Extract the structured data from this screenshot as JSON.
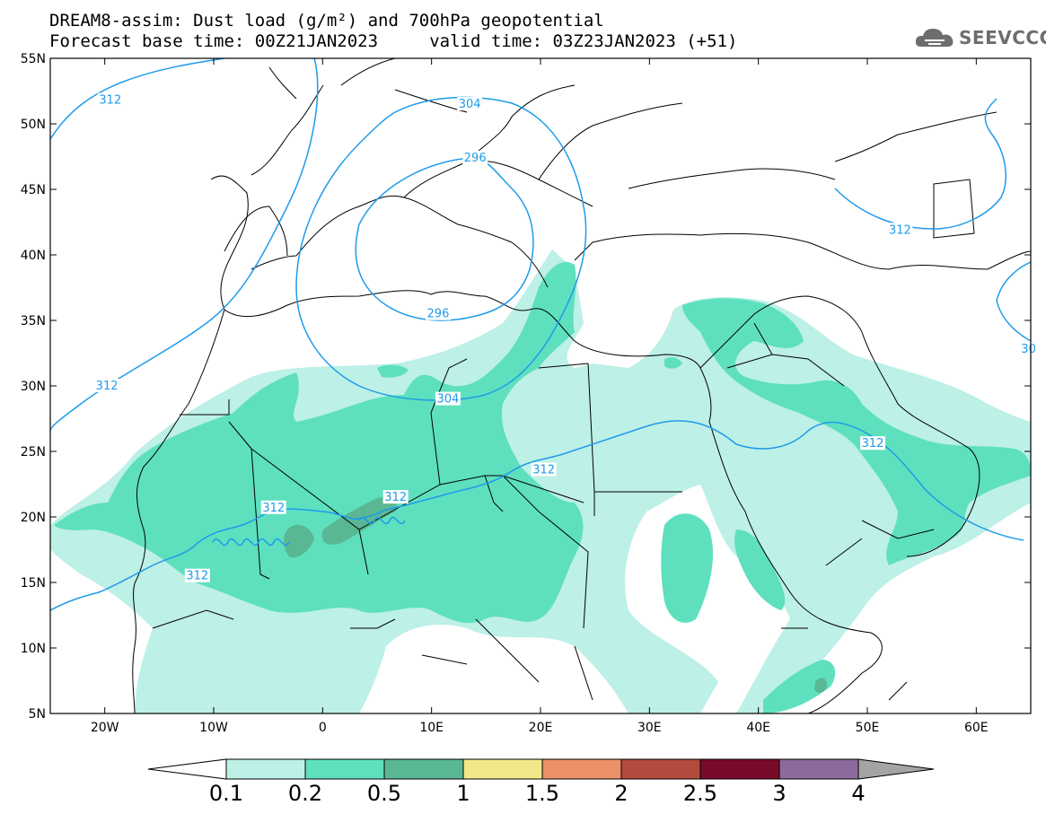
{
  "title": {
    "line1": "DREAM8-assim: Dust load (g/m²) and 700hPa geopotential",
    "line2": "Forecast base time: 00Z21JAN2023     valid time: 03Z23JAN2023 (+51)"
  },
  "logo": {
    "icon": "cloud-icon",
    "text": "SEEVCCC"
  },
  "axes": {
    "lat_ticks": [
      "55N",
      "50N",
      "45N",
      "40N",
      "35N",
      "30N",
      "25N",
      "20N",
      "15N",
      "10N",
      "5N"
    ],
    "lon_ticks": [
      "20W",
      "10W",
      "0",
      "10E",
      "20E",
      "30E",
      "40E",
      "50E",
      "60E"
    ],
    "lat_range": [
      5,
      55
    ],
    "lon_range": [
      -25,
      65
    ]
  },
  "contour_labels": [
    {
      "text": "312",
      "lon": -19.5,
      "lat": 51.8
    },
    {
      "text": "304",
      "lon": 13.5,
      "lat": 51.5
    },
    {
      "text": "296",
      "lon": 14.0,
      "lat": 47.4
    },
    {
      "text": "296",
      "lon": 10.6,
      "lat": 35.5
    },
    {
      "text": "304",
      "lon": 11.5,
      "lat": 29.0
    },
    {
      "text": "312",
      "lon": -19.8,
      "lat": 30.0
    },
    {
      "text": "312",
      "lon": -4.5,
      "lat": 20.7
    },
    {
      "text": "312",
      "lon": 6.7,
      "lat": 21.5
    },
    {
      "text": "312",
      "lon": 20.3,
      "lat": 23.6
    },
    {
      "text": "312",
      "lon": -11.5,
      "lat": 15.5
    },
    {
      "text": "312",
      "lon": 53.0,
      "lat": 41.9
    },
    {
      "text": "312",
      "lon": 50.5,
      "lat": 25.6
    },
    {
      "text": "30",
      "lon": 64.8,
      "lat": 32.8
    }
  ],
  "colorbar": {
    "labels": [
      "0.1",
      "0.2",
      "0.5",
      "1",
      "1.5",
      "2",
      "2.5",
      "3",
      "4"
    ],
    "colors": [
      "#bdf0e6",
      "#5ee0be",
      "#59b893",
      "#f2e88a",
      "#ec9068",
      "#b24b3e",
      "#7a0a2a",
      "#8d6a9d"
    ],
    "over_color": "#a4a4a4",
    "under_color": "#ffffff"
  },
  "colors": {
    "contour": "#1e9bea",
    "border": "#000000"
  }
}
